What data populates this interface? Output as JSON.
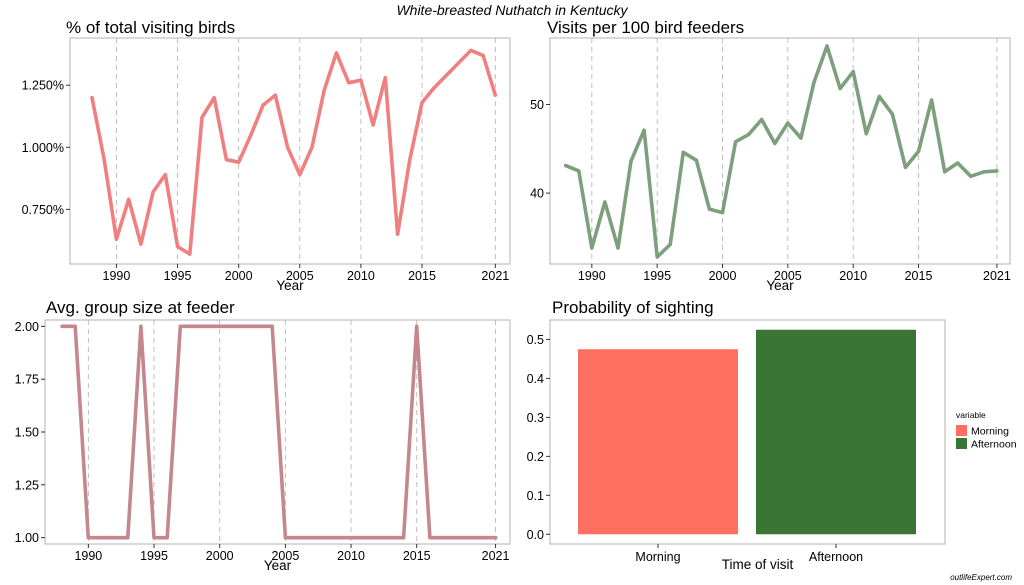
{
  "figure": {
    "title": "White-breasted Nuthatch in Kentucky",
    "credit": "outlifeExpert.com"
  },
  "chart_data": [
    {
      "id": "pct",
      "type": "line",
      "title": "% of total visiting birds",
      "xlabel": "Year",
      "ylabel": "",
      "color": "#F08080",
      "xlim": [
        1986.2,
        2022.2
      ],
      "ylim": [
        0.53,
        1.44
      ],
      "grid": "vertical dashed",
      "xticks": [
        1990,
        1995,
        2000,
        2005,
        2010,
        2015,
        2021
      ],
      "yticks": [
        0.75,
        1.0,
        1.25
      ],
      "ytick_labels": [
        "0.750%",
        "1.000%",
        "1.250%"
      ],
      "x": [
        1988,
        1989,
        1990,
        1991,
        1992,
        1993,
        1994,
        1995,
        1996,
        1997,
        1998,
        1999,
        2000,
        2001,
        2002,
        2003,
        2004,
        2005,
        2006,
        2007,
        2008,
        2009,
        2010,
        2011,
        2012,
        2013,
        2014,
        2015,
        2016,
        2019,
        2020,
        2021
      ],
      "y": [
        1.2,
        0.95,
        0.63,
        0.79,
        0.61,
        0.82,
        0.89,
        0.6,
        0.57,
        1.12,
        1.2,
        0.95,
        0.94,
        1.05,
        1.17,
        1.21,
        1.0,
        0.89,
        1.0,
        1.23,
        1.38,
        1.26,
        1.27,
        1.09,
        1.28,
        0.65,
        0.95,
        1.18,
        1.24,
        1.39,
        1.37,
        1.21
      ]
    },
    {
      "id": "visits",
      "type": "line",
      "title": "Visits per 100 bird feeders",
      "xlabel": "Year",
      "ylabel": "",
      "color": "#7D9F7B",
      "xlim": [
        1986.8,
        2022
      ],
      "ylim": [
        32,
        57.5
      ],
      "grid": "vertical dashed",
      "xticks": [
        1990,
        1995,
        2000,
        2005,
        2010,
        2015,
        2021
      ],
      "yticks": [
        40,
        50
      ],
      "ytick_labels": [
        "40",
        "50"
      ],
      "x": [
        1988,
        1989,
        1990,
        1991,
        1992,
        1993,
        1994,
        1995,
        1996,
        1997,
        1998,
        1999,
        2000,
        2001,
        2002,
        2003,
        2004,
        2005,
        2006,
        2007,
        2008,
        2009,
        2010,
        2011,
        2012,
        2013,
        2014,
        2015,
        2016,
        2017,
        2018,
        2019,
        2020,
        2021
      ],
      "y": [
        43.1,
        42.5,
        33.8,
        39.0,
        33.8,
        43.6,
        47.1,
        32.8,
        34.2,
        44.6,
        43.7,
        38.2,
        37.8,
        45.8,
        46.6,
        48.3,
        45.6,
        47.9,
        46.2,
        52.5,
        56.6,
        51.8,
        53.7,
        46.7,
        50.9,
        48.9,
        42.9,
        44.7,
        50.5,
        42.4,
        43.4,
        41.9,
        42.4,
        42.5
      ]
    },
    {
      "id": "group",
      "type": "line",
      "title": "Avg. group size at feeder",
      "xlabel": "Year",
      "ylabel": "",
      "color": "#C4878C",
      "xlim": [
        1986.7,
        2022.1
      ],
      "ylim": [
        0.97,
        2.03
      ],
      "grid": "vertical dashed",
      "xticks": [
        1990,
        1995,
        2000,
        2005,
        2010,
        2015,
        2021
      ],
      "yticks": [
        1.0,
        1.25,
        1.5,
        1.75,
        2.0
      ],
      "ytick_labels": [
        "1.00",
        "1.25",
        "1.50",
        "1.75",
        "2.00"
      ],
      "x": [
        1988,
        1989,
        1990,
        1993,
        1994,
        1995,
        1996,
        1997,
        2004,
        2005,
        2014,
        2015,
        2016,
        2021
      ],
      "y": [
        2,
        2,
        1,
        1,
        2,
        1,
        1,
        2,
        2,
        1,
        1,
        2,
        1,
        1
      ]
    },
    {
      "id": "prob",
      "type": "bar",
      "title": "Probability of sighting",
      "xlabel": "Time of visit",
      "ylabel": "",
      "ylim": [
        -0.025,
        0.55
      ],
      "yticks": [
        0.0,
        0.1,
        0.2,
        0.3,
        0.4,
        0.5
      ],
      "ytick_labels": [
        "0.0",
        "0.1",
        "0.2",
        "0.3",
        "0.4",
        "0.5"
      ],
      "categories": [
        "Morning",
        "Afternoon"
      ],
      "values": [
        0.475,
        0.525
      ],
      "colors": [
        "#FF6F61",
        "#3A7533"
      ],
      "legend": {
        "title": "variable",
        "placement": "right",
        "entries": [
          "Morning",
          "Afternoon"
        ]
      }
    }
  ]
}
